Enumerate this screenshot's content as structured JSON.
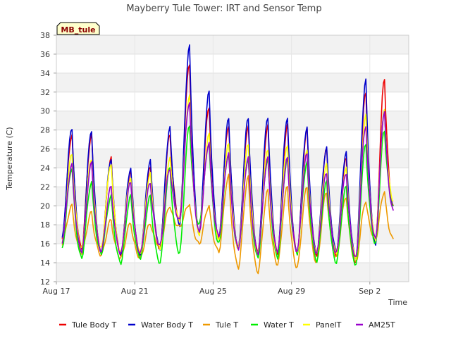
{
  "chart_data": {
    "type": "line",
    "title": "Mayberry Tule Tower: IRT and Sensor Temp",
    "tag": "MB_tule",
    "xlabel": "Time",
    "ylabel": "Temperature (C)",
    "ylim": [
      12,
      38
    ],
    "yticks": [
      12,
      14,
      16,
      18,
      20,
      22,
      24,
      26,
      28,
      30,
      32,
      34,
      36,
      38
    ],
    "xlim": [
      0,
      18
    ],
    "xticks": [
      {
        "label": "Aug 17",
        "day": 0
      },
      {
        "label": "Aug 21",
        "day": 4
      },
      {
        "label": "Aug 25",
        "day": 8
      },
      {
        "label": "Aug 29",
        "day": 12
      },
      {
        "label": "Sep 2",
        "day": 16
      }
    ],
    "grid": true,
    "legend_position": "bottom",
    "day_offsets": [
      0.3,
      1.3,
      2.3,
      3.3,
      4.3,
      5.3,
      6.3,
      7.3,
      8.3,
      9.3,
      10.3,
      11.3,
      12.3,
      13.3,
      14.3,
      15.3,
      16.3,
      17.2
    ],
    "series": [
      {
        "name": "Tule Body T",
        "color": "#ee0000",
        "min": [
          16.5,
          15.5,
          15.0,
          14.8,
          14.8,
          15.5,
          18.5,
          17.0,
          16.5,
          15.5,
          15.0,
          15.0,
          15.0,
          14.8,
          14.8,
          14.0,
          16.0,
          20.0
        ],
        "max": [
          27.5,
          27.5,
          25.0,
          23.5,
          24.0,
          27.5,
          35.0,
          30.5,
          28.5,
          28.5,
          28.5,
          28.5,
          28.0,
          26.0,
          25.0,
          32.0,
          33.5
        ]
      },
      {
        "name": "Water Body T",
        "color": "#0000cc",
        "min": [
          16.5,
          15.0,
          15.0,
          14.8,
          14.8,
          15.5,
          18.0,
          17.0,
          16.5,
          15.5,
          15.0,
          15.0,
          15.0,
          15.0,
          15.2,
          14.5,
          16.0,
          20.0
        ],
        "max": [
          28.2,
          28.0,
          25.0,
          24.0,
          24.8,
          28.2,
          36.8,
          32.0,
          29.2,
          29.3,
          29.4,
          29.4,
          28.4,
          26.2,
          25.6,
          33.2,
          30.0
        ]
      },
      {
        "name": "Tule T",
        "color": "#ee9900",
        "min": [
          16.0,
          15.0,
          14.8,
          14.5,
          14.5,
          15.8,
          17.8,
          16.0,
          15.2,
          13.5,
          13.0,
          13.8,
          13.5,
          14.0,
          14.5,
          14.0,
          16.5,
          16.5
        ],
        "max": [
          20.0,
          19.3,
          18.5,
          18.2,
          18.2,
          20.0,
          20.2,
          20.0,
          23.2,
          23.0,
          21.6,
          22.0,
          22.0,
          21.5,
          21.0,
          20.5,
          21.5
        ]
      },
      {
        "name": "Water T",
        "color": "#00ee00",
        "min": [
          15.5,
          14.5,
          15.0,
          14.0,
          14.5,
          14.0,
          15.0,
          18.0,
          16.0,
          15.5,
          14.5,
          14.5,
          15.0,
          14.2,
          14.0,
          13.8,
          16.0,
          20.0
        ],
        "max": [
          24.0,
          22.5,
          21.0,
          21.0,
          21.0,
          24.0,
          28.5,
          26.5,
          25.5,
          25.0,
          25.0,
          25.0,
          24.5,
          22.5,
          22.0,
          26.5,
          28.0
        ]
      },
      {
        "name": "PanelT",
        "color": "#ffff00",
        "min": [
          16.0,
          15.5,
          15.5,
          15.0,
          15.0,
          15.5,
          18.5,
          17.0,
          16.5,
          15.5,
          15.0,
          15.0,
          15.0,
          15.0,
          15.0,
          14.5,
          16.5,
          20.5
        ],
        "max": [
          25.5,
          25.0,
          24.5,
          23.0,
          23.5,
          25.0,
          31.5,
          27.5,
          26.5,
          26.5,
          26.0,
          26.5,
          26.0,
          24.5,
          24.0,
          29.5,
          30.0
        ]
      },
      {
        "name": "AM25T",
        "color": "#9900cc",
        "min": [
          16.2,
          15.2,
          15.2,
          15.0,
          15.0,
          15.8,
          18.5,
          17.2,
          16.8,
          15.5,
          15.0,
          15.2,
          15.2,
          15.0,
          15.0,
          14.5,
          16.5,
          19.5
        ],
        "max": [
          24.3,
          24.5,
          22.0,
          22.5,
          22.5,
          24.0,
          31.0,
          26.7,
          25.5,
          25.0,
          25.0,
          25.0,
          25.5,
          23.5,
          23.5,
          28.5,
          30.0
        ]
      }
    ]
  }
}
